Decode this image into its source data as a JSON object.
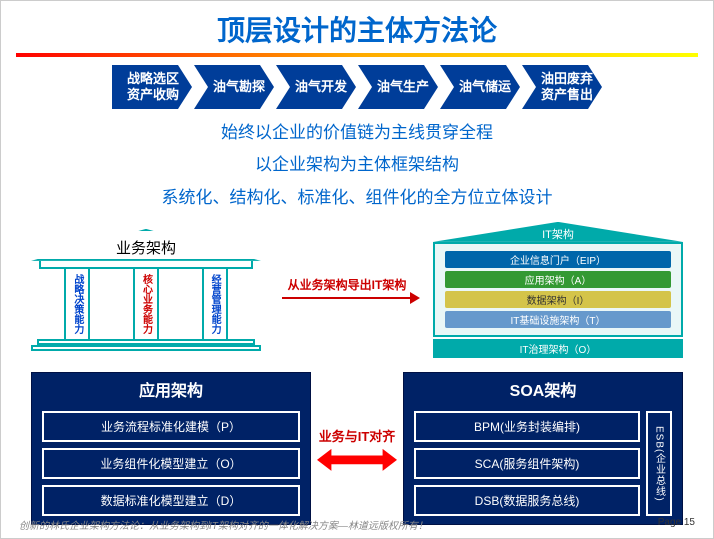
{
  "title": "顶层设计的主体方法论",
  "gradient": {
    "from": "#ff0000",
    "mid": "#ffaa00",
    "to": "#ffff00"
  },
  "chevrons": [
    "战略选区\n资产收购",
    "油气勘探",
    "油气开发",
    "油气生产",
    "油气储运",
    "油田废弃\n资产售出"
  ],
  "chevron_bg": "#003d99",
  "subtitles": [
    "始终以企业的价值链为主线贯穿全程",
    "以企业架构为主体框架结构",
    "系统化、结构化、标准化、组件化的全方位立体设计"
  ],
  "subtitle_color": "#0066cc",
  "temple": {
    "label": "业务架构",
    "border": "#00aaaa",
    "pillars": [
      {
        "text": "战略决策能力",
        "color": "#0044cc"
      },
      {
        "text": "核心业务能力",
        "color": "#cc0000"
      },
      {
        "text": "经营管理能力",
        "color": "#0044cc"
      }
    ]
  },
  "mid_arrow": {
    "text": "从业务架构导出IT架构",
    "color": "#cc0000"
  },
  "it_stack": {
    "roof_label": "IT架构",
    "roof_bg": "#00aaaa",
    "frame_border": "#00aaaa",
    "frame_bg": "#eaf7f7",
    "layers": [
      {
        "text": "企业信息门户（EIP）",
        "bg": "#0066aa"
      },
      {
        "text": "应用架构（A）",
        "bg": "#339933"
      },
      {
        "text": "数据架构（I）",
        "bg": "#d4c44a"
      },
      {
        "text": "IT基础设施架构（T）",
        "bg": "#6699cc"
      }
    ],
    "gov": {
      "text": "IT治理架构（O）",
      "bg": "#00aaaa"
    }
  },
  "left_panel": {
    "title": "应用架构",
    "bg": "#002266",
    "items": [
      "业务流程标准化建模（P）",
      "业务组件化模型建立（O）",
      "数据标准化模型建立（D）"
    ]
  },
  "double_arrow": {
    "text": "业务与IT对齐",
    "color": "#cc0000",
    "shape_bg": "#ff0000"
  },
  "right_panel": {
    "title": "SOA架构",
    "bg": "#002266",
    "items": [
      "BPM(业务封装编排)",
      "SCA(服务组件架构)",
      "DSB(数据服务总线)"
    ],
    "side": "ESB(企业总线)"
  },
  "footer": {
    "text": "创新的林氏企业架构方法论：从业务架构到IT架构对齐的一体化解决方案—林道远版权所有！",
    "page": "Page 15"
  }
}
